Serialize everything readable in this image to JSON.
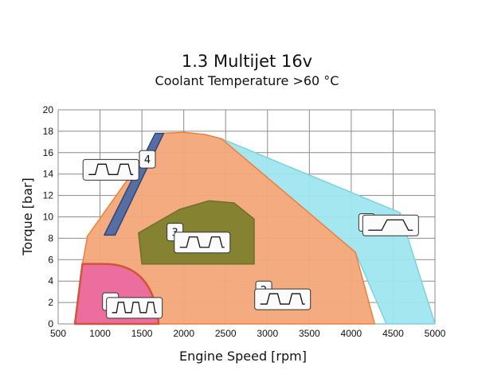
{
  "chart_data": {
    "type": "area",
    "title": "1.3 Multijet 16v",
    "subtitle": "Coolant Temperature >60 °C",
    "xlabel": "Engine Speed [rpm]",
    "ylabel": "Torque [bar]",
    "xlim": [
      500,
      5000
    ],
    "ylim": [
      0,
      20
    ],
    "xticks": [
      500,
      1000,
      1500,
      2000,
      2500,
      3000,
      3500,
      4000,
      4500,
      5000
    ],
    "yticks": [
      0,
      2,
      4,
      6,
      8,
      10,
      12,
      14,
      16,
      18,
      20
    ],
    "grid": true,
    "colors": {
      "grid": "#8c8c8c",
      "region1": "#ea6aa0",
      "region1_stroke": "#d2553a",
      "region2": "#f2a778",
      "region2_stroke": "#ef7f3a",
      "region3": "#7e7f2d",
      "region3_stroke": "#6f7028",
      "region4": "#4d6aa4",
      "region4_stroke": "#2e4576",
      "region5": "#9fe6ef",
      "region5_stroke": "#7cd2dd"
    },
    "regions": [
      {
        "id": "5",
        "label": "5",
        "points": [
          [
            2450,
            17.3
          ],
          [
            4580,
            10.4
          ],
          [
            5000,
            0
          ],
          [
            4280,
            0
          ],
          [
            4420,
            0
          ],
          [
            4050,
            6.7
          ],
          [
            2450,
            17.3
          ]
        ],
        "badge": [
          4090,
          10.3
        ],
        "icon": [
          4470,
          9.2
        ],
        "icon_pulses": 1
      },
      {
        "id": "2",
        "label": "2",
        "points": [
          [
            850,
            8.2
          ],
          [
            1720,
            17.8
          ],
          [
            2000,
            17.9
          ],
          [
            2250,
            17.7
          ],
          [
            2450,
            17.3
          ],
          [
            4050,
            6.7
          ],
          [
            4280,
            0
          ],
          [
            700,
            0
          ],
          [
            790,
            5.6
          ],
          [
            850,
            8.2
          ]
        ],
        "badge": [
          2860,
          4.0
        ],
        "icon": [
          3180,
          2.3
        ],
        "icon_pulses": 2
      },
      {
        "id": "4",
        "label": "4",
        "points": [
          [
            1050,
            8.3
          ],
          [
            1660,
            17.8
          ],
          [
            1760,
            17.8
          ],
          [
            1180,
            8.3
          ],
          [
            1050,
            8.3
          ]
        ],
        "badge": [
          1470,
          16.2
        ],
        "icon": [
          1130,
          14.4
        ],
        "icon_pulses": 2
      },
      {
        "id": "3",
        "label": "3",
        "points": [
          [
            1460,
            8.5
          ],
          [
            1950,
            10.7
          ],
          [
            2300,
            11.5
          ],
          [
            2600,
            11.3
          ],
          [
            2840,
            9.8
          ],
          [
            2840,
            5.6
          ],
          [
            1500,
            5.6
          ],
          [
            1460,
            8.5
          ]
        ],
        "badge": [
          1800,
          9.4
        ],
        "icon": [
          2220,
          7.6
        ],
        "icon_pulses": 2
      },
      {
        "id": "1",
        "label": "1",
        "points": [
          [
            700,
            0
          ],
          [
            790,
            5.6
          ],
          [
            1050,
            5.6
          ],
          [
            1300,
            5.2
          ],
          [
            1500,
            4.0
          ],
          [
            1650,
            2.0
          ],
          [
            1700,
            0
          ],
          [
            700,
            0
          ]
        ],
        "badge": [
          1030,
          2.9
        ],
        "icon": [
          1410,
          1.5
        ],
        "icon_pulses": 3
      }
    ]
  }
}
